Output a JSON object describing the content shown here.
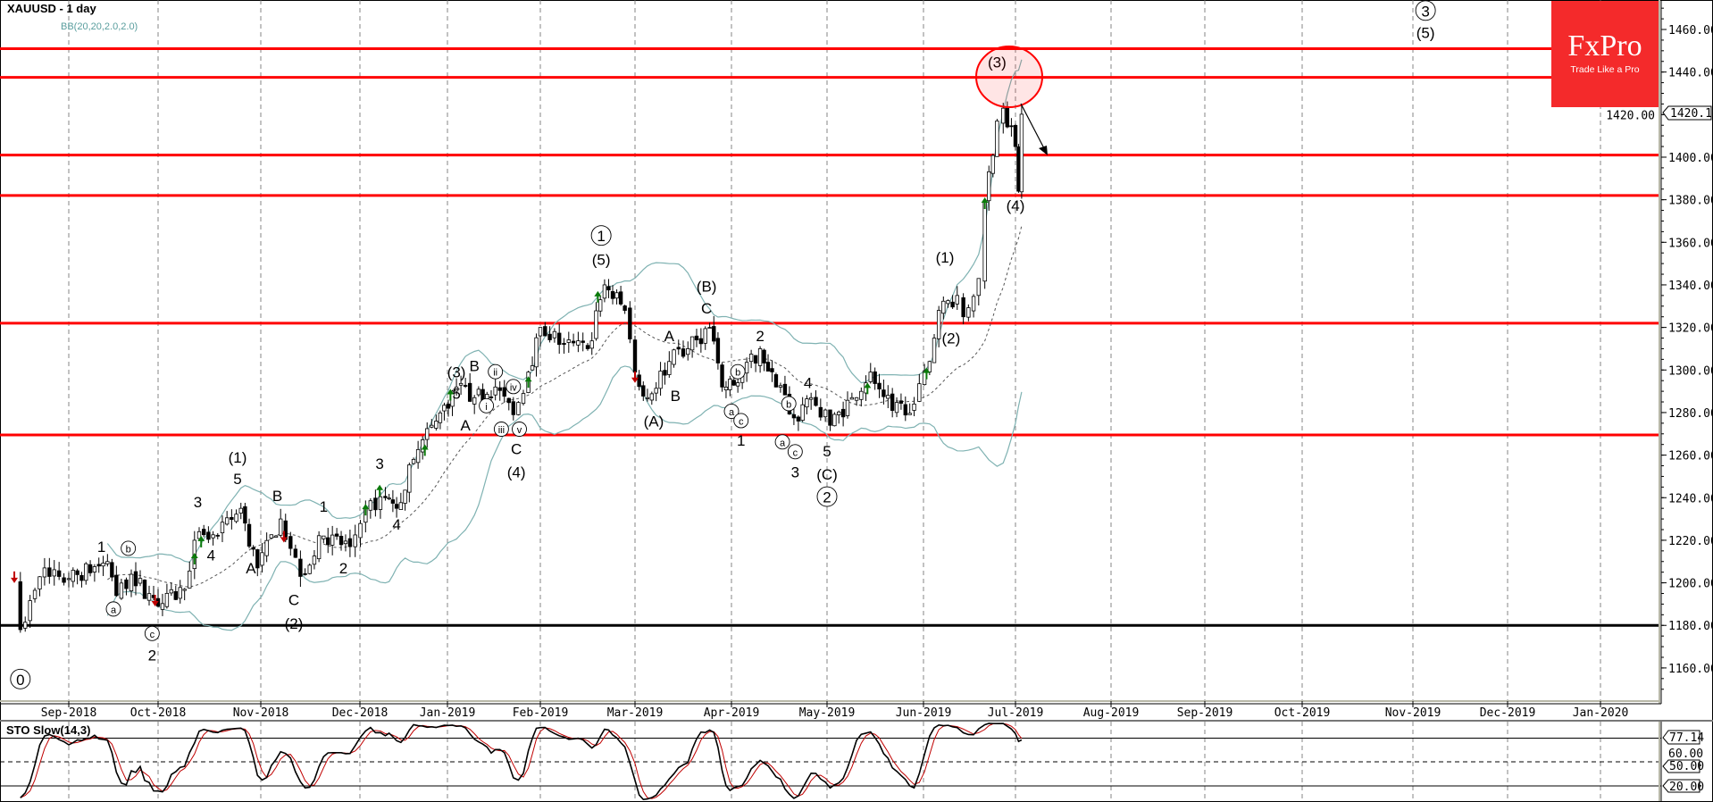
{
  "header": {
    "title": "XAUUSD - 1 day",
    "indicator": "BB(20,20,2.0,2.0)"
  },
  "logo": {
    "brand": "FxPro",
    "tagline": "Trade Like a Pro",
    "color": "#f42a2b"
  },
  "chart_data": {
    "type": "candlestick",
    "symbol": "XAUUSD",
    "timeframe": "1 day",
    "ylim": [
      1150,
      1470
    ],
    "last_price": "1420.17",
    "y_ticks": [
      "1160.00",
      "1180.00",
      "1200.00",
      "1220.00",
      "1240.00",
      "1260.00",
      "1280.00",
      "1300.00",
      "1320.00",
      "1340.00",
      "1360.00",
      "1380.00",
      "1400.00",
      "1420.00",
      "1440.00",
      "1460.00"
    ],
    "x_ticks": [
      "Sep-2018",
      "Oct-2018",
      "Nov-2018",
      "Dec-2018",
      "Jan-2019",
      "Feb-2019",
      "Mar-2019",
      "Apr-2019",
      "May-2019",
      "Jun-2019",
      "Jul-2019",
      "Aug-2019",
      "Sep-2019",
      "Oct-2019",
      "Nov-2019",
      "Dec-2019",
      "Jan-2020"
    ],
    "close_path": [
      [
        "2018-08-14",
        1202
      ],
      [
        "2018-08-16",
        1178
      ],
      [
        "2018-08-24",
        1207
      ],
      [
        "2018-09-01",
        1202
      ],
      [
        "2018-09-14",
        1210
      ],
      [
        "2018-09-17",
        1194
      ],
      [
        "2018-09-22",
        1204
      ],
      [
        "2018-10-01",
        1189
      ],
      [
        "2018-10-09",
        1197
      ],
      [
        "2018-10-12",
        1220
      ],
      [
        "2018-10-19",
        1222
      ],
      [
        "2018-10-26",
        1235
      ],
      [
        "2018-10-31",
        1207
      ],
      [
        "2018-11-07",
        1230
      ],
      [
        "2018-11-13",
        1203
      ],
      [
        "2018-11-20",
        1222
      ],
      [
        "2018-11-28",
        1217
      ],
      [
        "2018-12-03",
        1235
      ],
      [
        "2018-12-10",
        1240
      ],
      [
        "2018-12-14",
        1235
      ],
      [
        "2018-12-20",
        1258
      ],
      [
        "2018-12-28",
        1276
      ],
      [
        "2019-01-04",
        1292
      ],
      [
        "2019-01-10",
        1287
      ],
      [
        "2019-01-17",
        1292
      ],
      [
        "2019-01-23",
        1279
      ],
      [
        "2019-01-28",
        1299
      ],
      [
        "2019-02-01",
        1320
      ],
      [
        "2019-02-08",
        1312
      ],
      [
        "2019-02-15",
        1310
      ],
      [
        "2019-02-20",
        1340
      ],
      [
        "2019-02-26",
        1328
      ],
      [
        "2019-03-01",
        1299
      ],
      [
        "2019-03-05",
        1287
      ],
      [
        "2019-03-12",
        1304
      ],
      [
        "2019-03-18",
        1310
      ],
      [
        "2019-03-25",
        1320
      ],
      [
        "2019-03-29",
        1292
      ],
      [
        "2019-04-03",
        1294
      ],
      [
        "2019-04-10",
        1310
      ],
      [
        "2019-04-15",
        1292
      ],
      [
        "2019-04-22",
        1276
      ],
      [
        "2019-04-26",
        1287
      ],
      [
        "2019-05-02",
        1274
      ],
      [
        "2019-05-09",
        1287
      ],
      [
        "2019-05-15",
        1299
      ],
      [
        "2019-05-22",
        1281
      ],
      [
        "2019-05-29",
        1284
      ],
      [
        "2019-06-03",
        1304
      ],
      [
        "2019-06-06",
        1328
      ],
      [
        "2019-06-12",
        1335
      ],
      [
        "2019-06-14",
        1325
      ],
      [
        "2019-06-19",
        1343
      ],
      [
        "2019-06-21",
        1379
      ],
      [
        "2019-06-25",
        1417
      ],
      [
        "2019-06-27",
        1423
      ],
      [
        "2019-07-01",
        1405
      ],
      [
        "2019-07-02",
        1384
      ],
      [
        "2019-07-03",
        1420.17
      ]
    ],
    "horizontal_levels": [
      {
        "price": 1451,
        "color": "#ff0000"
      },
      {
        "price": 1437.5,
        "color": "#ff0000"
      },
      {
        "price": 1401,
        "color": "#ff0000"
      },
      {
        "price": 1382,
        "color": "#ff0000"
      },
      {
        "price": 1322,
        "color": "#ff0000"
      },
      {
        "price": 1269.5,
        "color": "#ff0000"
      },
      {
        "price": 1180,
        "color": "#000000"
      }
    ],
    "bollinger_color": "#7fb2b2",
    "wave_labels": [
      {
        "t": "0",
        "c": true,
        "d": "2018-08-16",
        "p": 1154.6
      },
      {
        "t": "1",
        "d": "2018-09-12",
        "p": 1217
      },
      {
        "t": "b",
        "c": true,
        "s": true,
        "d": "2018-09-21",
        "p": 1216
      },
      {
        "t": "a",
        "c": true,
        "s": true,
        "d": "2018-09-16",
        "p": 1187.5
      },
      {
        "t": "c",
        "c": true,
        "s": true,
        "d": "2018-09-29",
        "p": 1176
      },
      {
        "t": "2",
        "d": "2018-09-29",
        "p": 1166
      },
      {
        "t": "3",
        "d": "2018-10-13",
        "p": 1238
      },
      {
        "t": "4",
        "d": "2018-10-17",
        "p": 1213
      },
      {
        "t": "(1)",
        "d": "2018-10-25",
        "p": 1259
      },
      {
        "t": "5",
        "d": "2018-10-25",
        "p": 1249
      },
      {
        "t": "A",
        "d": "2018-10-29",
        "p": 1207
      },
      {
        "t": "B",
        "d": "2018-11-06",
        "p": 1241
      },
      {
        "t": "1",
        "d": "2018-11-20",
        "p": 1236
      },
      {
        "t": "C",
        "d": "2018-11-11",
        "p": 1192
      },
      {
        "t": "(2)",
        "d": "2018-11-11",
        "p": 1181
      },
      {
        "t": "2",
        "d": "2018-11-26",
        "p": 1207
      },
      {
        "t": "3",
        "d": "2018-12-08",
        "p": 1256
      },
      {
        "t": "4",
        "d": "2018-12-14",
        "p": 1227.5
      },
      {
        "t": "(3)",
        "d": "2019-01-04",
        "p": 1299
      },
      {
        "t": "5",
        "d": "2019-01-04",
        "p": 1289
      },
      {
        "t": "B",
        "d": "2019-01-10",
        "p": 1302
      },
      {
        "t": "A",
        "d": "2019-01-07",
        "p": 1274
      },
      {
        "t": "ii",
        "c": true,
        "s": true,
        "d": "2019-01-17",
        "p": 1299
      },
      {
        "t": "i",
        "c": true,
        "s": true,
        "d": "2019-01-14",
        "p": 1283
      },
      {
        "t": "iv",
        "c": true,
        "s": true,
        "d": "2019-01-23",
        "p": 1292
      },
      {
        "t": "iii",
        "c": true,
        "s": true,
        "d": "2019-01-19",
        "p": 1272
      },
      {
        "t": "v",
        "c": true,
        "s": true,
        "d": "2019-01-25",
        "p": 1272
      },
      {
        "t": "C",
        "d": "2019-01-24",
        "p": 1263
      },
      {
        "t": "(4)",
        "d": "2019-01-24",
        "p": 1252
      },
      {
        "t": "1",
        "c": true,
        "d": "2019-02-19",
        "p": 1363
      },
      {
        "t": "(5)",
        "d": "2019-02-19",
        "p": 1352
      },
      {
        "t": "(B)",
        "d": "2019-03-24",
        "p": 1339.4
      },
      {
        "t": "C",
        "d": "2019-03-24",
        "p": 1329
      },
      {
        "t": "A",
        "d": "2019-03-12",
        "p": 1316
      },
      {
        "t": "B",
        "d": "2019-03-14",
        "p": 1288
      },
      {
        "t": "(A)",
        "d": "2019-03-07",
        "p": 1276
      },
      {
        "t": "b",
        "c": true,
        "s": true,
        "d": "2019-04-03",
        "p": 1299
      },
      {
        "t": "a",
        "c": true,
        "s": true,
        "d": "2019-04-01",
        "p": 1280.4
      },
      {
        "t": "c",
        "c": true,
        "s": true,
        "d": "2019-04-04",
        "p": 1276
      },
      {
        "t": "1",
        "d": "2019-04-04",
        "p": 1267
      },
      {
        "t": "2",
        "d": "2019-04-10",
        "p": 1316
      },
      {
        "t": "4",
        "d": "2019-04-25",
        "p": 1294
      },
      {
        "t": "b",
        "c": true,
        "s": true,
        "d": "2019-04-19",
        "p": 1284
      },
      {
        "t": "a",
        "c": true,
        "s": true,
        "d": "2019-04-17",
        "p": 1266
      },
      {
        "t": "c",
        "c": true,
        "s": true,
        "d": "2019-04-21",
        "p": 1261.4
      },
      {
        "t": "3",
        "d": "2019-04-21",
        "p": 1252
      },
      {
        "t": "5",
        "d": "2019-05-01",
        "p": 1262
      },
      {
        "t": "(C)",
        "d": "2019-05-01",
        "p": 1251
      },
      {
        "t": "2",
        "c": true,
        "d": "2019-05-01",
        "p": 1240.3
      },
      {
        "t": "(1)",
        "d": "2019-06-08",
        "p": 1353
      },
      {
        "t": "(2)",
        "d": "2019-06-10",
        "p": 1315
      },
      {
        "t": "(3)",
        "d": "2019-06-25",
        "p": 1444.6
      },
      {
        "t": "(4)",
        "d": "2019-07-01",
        "p": 1377.4
      },
      {
        "t": "3",
        "c": true,
        "d": "2019-11-05",
        "p": 1468.7
      },
      {
        "t": "(5)",
        "d": "2019-11-05",
        "p": 1458.5
      }
    ],
    "signals": [
      {
        "dir": "up",
        "d": "2018-10-12",
        "p": 1212
      },
      {
        "dir": "up",
        "d": "2018-10-14",
        "p": 1220
      },
      {
        "dir": "up",
        "d": "2018-12-03",
        "p": 1235
      },
      {
        "dir": "up",
        "d": "2018-12-08",
        "p": 1244
      },
      {
        "dir": "up",
        "d": "2018-12-24",
        "p": 1263
      },
      {
        "dir": "up",
        "d": "2019-01-02",
        "p": 1289
      },
      {
        "dir": "up",
        "d": "2019-01-28",
        "p": 1295
      },
      {
        "dir": "up",
        "d": "2019-02-18",
        "p": 1335
      },
      {
        "dir": "up",
        "d": "2019-05-14",
        "p": 1292
      },
      {
        "dir": "up",
        "d": "2019-06-02",
        "p": 1299
      },
      {
        "dir": "up",
        "d": "2019-06-21",
        "p": 1379
      },
      {
        "dir": "down",
        "d": "2018-08-14",
        "p": 1202
      },
      {
        "dir": "down",
        "d": "2018-09-30",
        "p": 1191
      },
      {
        "dir": "down",
        "d": "2018-11-08",
        "p": 1221
      },
      {
        "dir": "down",
        "d": "2019-03-01",
        "p": 1296
      }
    ]
  },
  "stochastic": {
    "title": "STO Slow(14,3)",
    "last_value": "77.14",
    "levels": [
      "60.00",
      "50.00",
      "20.00"
    ],
    "main_color": "#000000",
    "signal_color": "#c00000"
  }
}
